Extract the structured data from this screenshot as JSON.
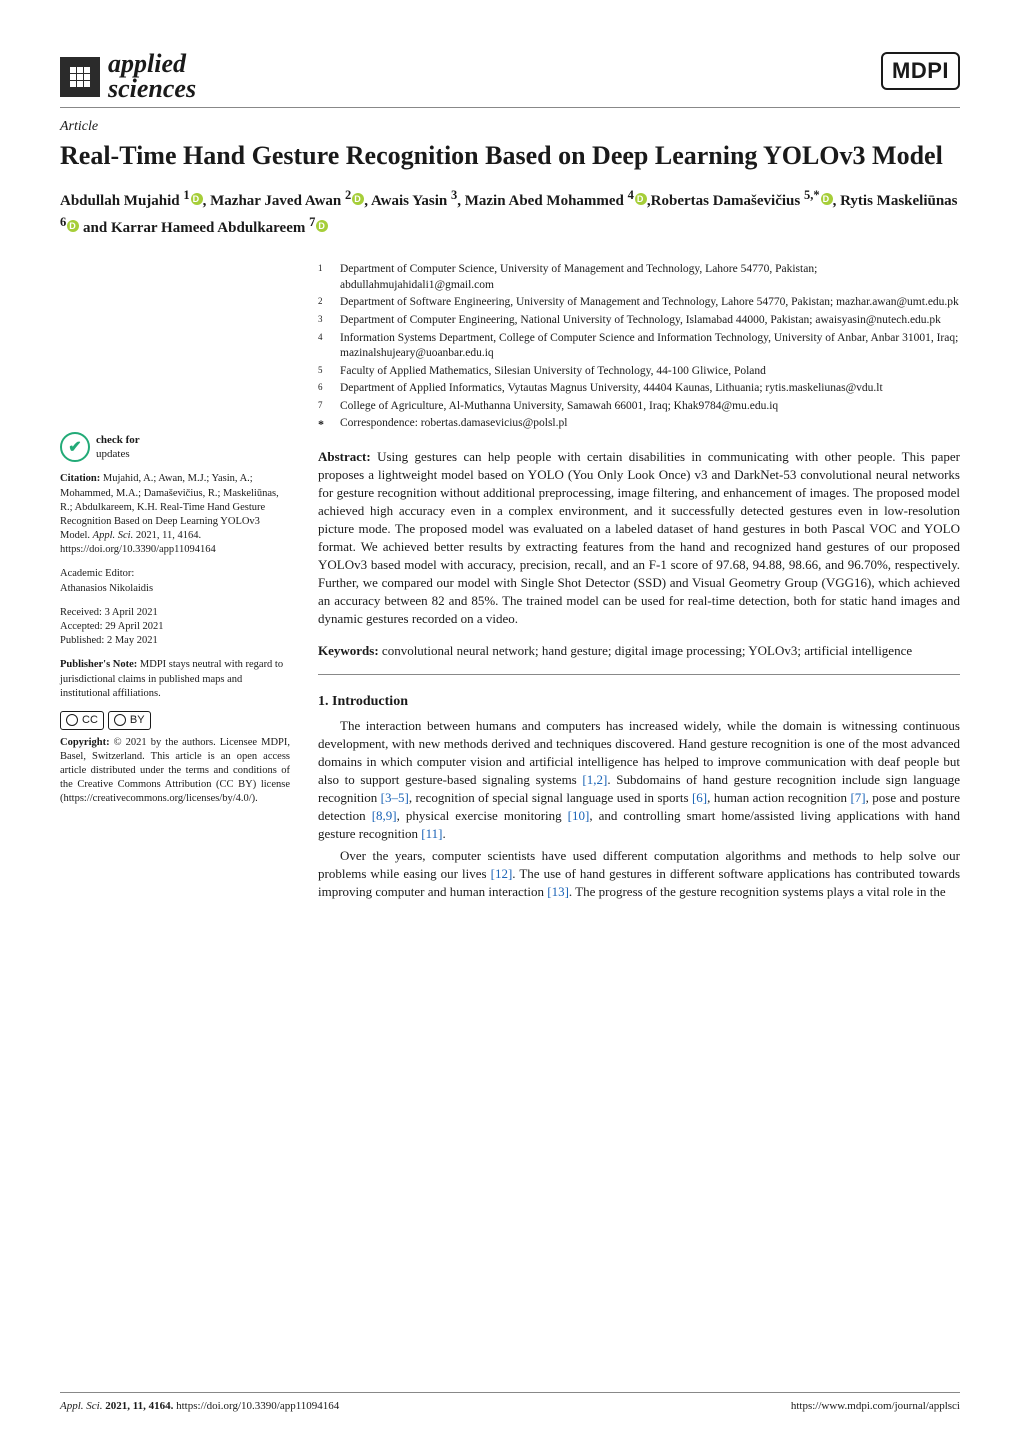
{
  "header": {
    "journal_name_line1": "applied",
    "journal_name_line2": "sciences",
    "publisher_mark": "MDPI"
  },
  "article": {
    "type": "Article",
    "title": "Real-Time Hand Gesture Recognition Based on Deep Learning YOLOv3 Model",
    "authors_html": [
      {
        "name": "Abdullah Mujahid",
        "sup": "1",
        "orcid": true,
        "sep": ", "
      },
      {
        "name": "Mazhar Javed Awan",
        "sup": "2",
        "orcid": true,
        "sep": ", "
      },
      {
        "name": "Awais Yasin",
        "sup": "3",
        "orcid": false,
        "sep": ", "
      },
      {
        "name": "Mazin Abed Mohammed",
        "sup": "4",
        "orcid": true,
        "sep": ","
      },
      {
        "name": "Robertas Damaševičius",
        "sup": "5,*",
        "orcid": true,
        "sep": ", "
      },
      {
        "name": "Rytis Maskeliūnas",
        "sup": "6",
        "orcid": true,
        "sep": " and "
      },
      {
        "name": "Karrar Hameed Abdulkareem",
        "sup": "7",
        "orcid": true,
        "sep": ""
      }
    ],
    "affiliations": [
      {
        "n": "1",
        "text": "Department of Computer Science, University of Management and Technology, Lahore 54770, Pakistan; abdullahmujahidali1@gmail.com"
      },
      {
        "n": "2",
        "text": "Department of Software Engineering, University of Management and Technology, Lahore 54770, Pakistan; mazhar.awan@umt.edu.pk"
      },
      {
        "n": "3",
        "text": "Department of Computer Engineering, National University of Technology, Islamabad 44000, Pakistan; awaisyasin@nutech.edu.pk"
      },
      {
        "n": "4",
        "text": "Information Systems Department, College of Computer Science and Information Technology, University of Anbar, Anbar 31001, Iraq; mazinalshujeary@uoanbar.edu.iq"
      },
      {
        "n": "5",
        "text": "Faculty of Applied Mathematics, Silesian University of Technology, 44-100 Gliwice, Poland"
      },
      {
        "n": "6",
        "text": "Department of Applied Informatics, Vytautas Magnus University, 44404 Kaunas, Lithuania; rytis.maskeliunas@vdu.lt"
      },
      {
        "n": "7",
        "text": "College of Agriculture, Al-Muthanna University, Samawah 66001, Iraq; Khak9784@mu.edu.iq"
      }
    ],
    "correspondence": "Correspondence: robertas.damasevicius@polsl.pl",
    "abstract_label": "Abstract:",
    "abstract": "Using gestures can help people with certain disabilities in communicating with other people. This paper proposes a lightweight model based on YOLO (You Only Look Once) v3 and DarkNet-53 convolutional neural networks for gesture recognition without additional preprocessing, image filtering, and enhancement of images. The proposed model achieved high accuracy even in a complex environment, and it successfully detected gestures even in low-resolution picture mode. The proposed model was evaluated on a labeled dataset of hand gestures in both Pascal VOC and YOLO format. We achieved better results by extracting features from the hand and recognized hand gestures of our proposed YOLOv3 based model with accuracy, precision, recall, and an F-1 score of 97.68, 94.88, 98.66, and 96.70%, respectively. Further, we compared our model with Single Shot Detector (SSD) and Visual Geometry Group (VGG16), which achieved an accuracy between 82 and 85%. The trained model can be used for real-time detection, both for static hand images and dynamic gestures recorded on a video.",
    "keywords_label": "Keywords:",
    "keywords": "convolutional neural network; hand gesture; digital image processing; YOLOv3; artificial intelligence",
    "section1_heading": "1. Introduction",
    "intro_p1": "The interaction between humans and computers has increased widely, while the domain is witnessing continuous development, with new methods derived and techniques discovered. Hand gesture recognition is one of the most advanced domains in which computer vision and artificial intelligence has helped to improve communication with deaf people but also to support gesture-based signaling systems [1,2]. Subdomains of hand gesture recognition include sign language recognition [3–5], recognition of special signal language used in sports [6], human action recognition [7], pose and posture detection [8,9], physical exercise monitoring [10], and controlling smart home/assisted living applications with hand gesture recognition [11].",
    "intro_p2": "Over the years, computer scientists have used different computation algorithms and methods to help solve our problems while easing our lives [12]. The use of hand gestures in different software applications has contributed towards improving computer and human interaction [13]. The progress of the gesture recognition systems plays a vital role in the"
  },
  "sidebar": {
    "check_updates_top": "check for",
    "check_updates_bottom": "updates",
    "citation_label": "Citation:",
    "citation_body": "Mujahid, A.; Awan, M.J.; Yasin, A.; Mohammed, M.A.; Damaševičius, R.; Maskeliūnas, R.; Abdulkareem, K.H. Real-Time Hand Gesture Recognition Based on Deep Learning YOLOv3 Model. ",
    "citation_journal": "Appl. Sci.",
    "citation_tail": " 2021, 11, 4164. https://doi.org/10.3390/app11094164",
    "academic_editor_label": "Academic Editor:",
    "academic_editor": "Athanasios Nikolaidis",
    "received": "Received: 3 April 2021",
    "accepted": "Accepted: 29 April 2021",
    "published": "Published: 2 May 2021",
    "pubnote_label": "Publisher's Note:",
    "pubnote": " MDPI stays neutral with regard to jurisdictional claims in published maps and institutional affiliations.",
    "cc_label": "CC",
    "by_label": "BY",
    "copyright_label": "Copyright:",
    "copyright": " © 2021 by the authors. Licensee MDPI, Basel, Switzerland. This article is an open access article distributed under the terms and conditions of the Creative Commons Attribution (CC BY) license (https://creativecommons.org/licenses/by/4.0/)."
  },
  "footer": {
    "left_journal": "Appl. Sci. ",
    "left_vol": "2021, 11, 4164. ",
    "left_doi": "https://doi.org/10.3390/app11094164",
    "right": "https://www.mdpi.com/journal/applsci"
  },
  "colors": {
    "cite": "#1a63b6",
    "orcid": "#a6ce39"
  }
}
